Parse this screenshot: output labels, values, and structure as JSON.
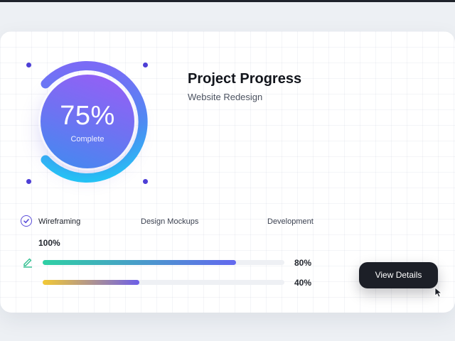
{
  "project": {
    "title": "Project Progress",
    "subtitle": "Website Redesign",
    "overall_percent_label": "75%",
    "overall_percent_value": 0.75,
    "complete_label": "Complete"
  },
  "stages": [
    {
      "label": "Wireframing",
      "percent_label": "100%"
    },
    {
      "label": "Design Mockups",
      "percent_label": "80%",
      "progress": 0.8
    },
    {
      "label": "Development",
      "percent_label": "40%",
      "progress": 0.4
    }
  ],
  "actions": {
    "view_details_label": "View Details"
  },
  "colors": {
    "ring_gradient": [
      "#22c9f7",
      "#4f8df4",
      "#7b6cf6"
    ],
    "bar1_gradient": [
      "#2fd0a4",
      "#6368ef"
    ],
    "bar2_gradient": [
      "#f2c935",
      "#6d5fe8"
    ],
    "accent": "#5a4cd9",
    "button_bg": "#1c1f27"
  },
  "icons": [
    "check-circle-icon",
    "pencil-icon",
    "cursor-arrow-icon"
  ]
}
